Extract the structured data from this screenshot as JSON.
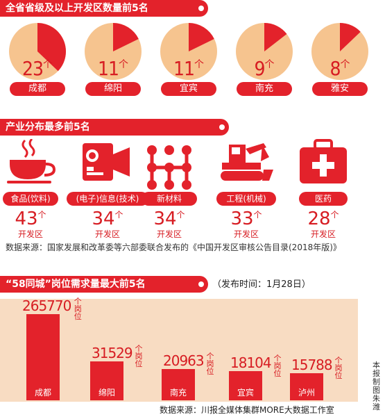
{
  "section1": {
    "title": "全省省级及以上开发区数量前5名"
  },
  "section2": {
    "title": "产业分布最多前5名"
  },
  "section3": {
    "title": "“58同城”岗位需求量最大前5名",
    "time": "（发布时间：1月28日）"
  },
  "unit_ge": "个",
  "unit_kfq": "开发区",
  "unit_gangwei": "个岗位",
  "source1": "数据来源：国家发展和改革委等六部委联合发布的《中国开发区审核公告目录(2018年版)》",
  "source2": "数据来源：川报全媒体集群MORE大数据工作室",
  "credit": "本报制图朱潍",
  "colors": {
    "red": "#e3222b",
    "pie_bg": "#f6c48f",
    "panel": "#f8dcc2"
  },
  "chart_data": [
    {
      "type": "pie",
      "title": "全省省级及以上开发区数量前5名",
      "categories": [
        "成都",
        "绵阳",
        "宜宾",
        "南充",
        "雅安"
      ],
      "values": [
        23,
        11,
        11,
        9,
        8
      ],
      "labels": [
        "23",
        "11",
        "11",
        "9",
        "8"
      ]
    },
    {
      "type": "table",
      "title": "产业分布最多前5名",
      "categories": [
        "食品(饮料)",
        "(电子)信息(技术)",
        "新材料",
        "工程(机械)",
        "医药"
      ],
      "values": [
        43,
        34,
        34,
        33,
        28
      ],
      "icons": [
        "coffee-cup-icon",
        "camera-icon",
        "molecule-icon",
        "excavator-icon",
        "first-aid-kit-icon"
      ]
    },
    {
      "type": "bar",
      "title": "“58同城”岗位需求量最大前5名",
      "categories": [
        "成都",
        "绵阳",
        "南充",
        "宜宾",
        "泸州"
      ],
      "values": [
        265770,
        31529,
        20963,
        18104,
        15788
      ]
    }
  ]
}
